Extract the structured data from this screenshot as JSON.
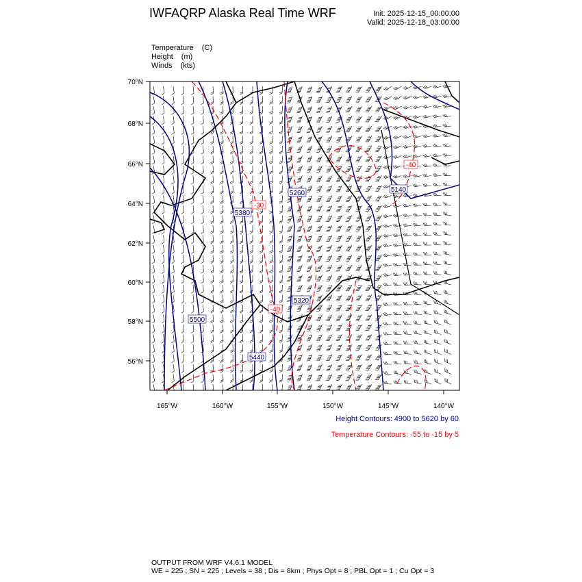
{
  "header": {
    "title": "IWFAQRP Alaska Real Time WRF",
    "init": "Init: 2025-12-15_00:00:00",
    "valid": "Valid: 2025-12-18_03:00:00"
  },
  "fields": [
    {
      "name": "Temperature",
      "unit": "(C)"
    },
    {
      "name": "Height",
      "unit": "(m)"
    },
    {
      "name": "Winds",
      "unit": "(kts)"
    }
  ],
  "map": {
    "lat_ticks": [
      "70°N",
      "68°N",
      "66°N",
      "64°N",
      "62°N",
      "60°N",
      "58°N",
      "56°N"
    ],
    "lon_ticks": [
      "165°W",
      "160°W",
      "155°W",
      "150°W",
      "145°W",
      "140°W"
    ],
    "height_contour_labels": [
      "5380",
      "5260",
      "5140",
      "5500",
      "5320",
      "5440"
    ],
    "temperature_contour_labels": [
      "-30",
      "-40",
      "-40"
    ],
    "colors": {
      "height": "#00008b",
      "temperature": "#ff0000",
      "coast": "#000000",
      "barbs": "#000000"
    }
  },
  "legend": {
    "height_contours": "Height Contours: 4900 to 5620 by 60",
    "temperature_contours": "Temperature Contours: -55 to -15 by 5"
  },
  "footer": {
    "line1": "OUTPUT FROM WRF V4.6.1 MODEL",
    "line2": "WE = 225 ; SN = 225 ; Levels = 38 ; Dis = 8km ; Phys Opt = 8 ; PBL Opt = 1 ; Cu Opt = 3"
  }
}
